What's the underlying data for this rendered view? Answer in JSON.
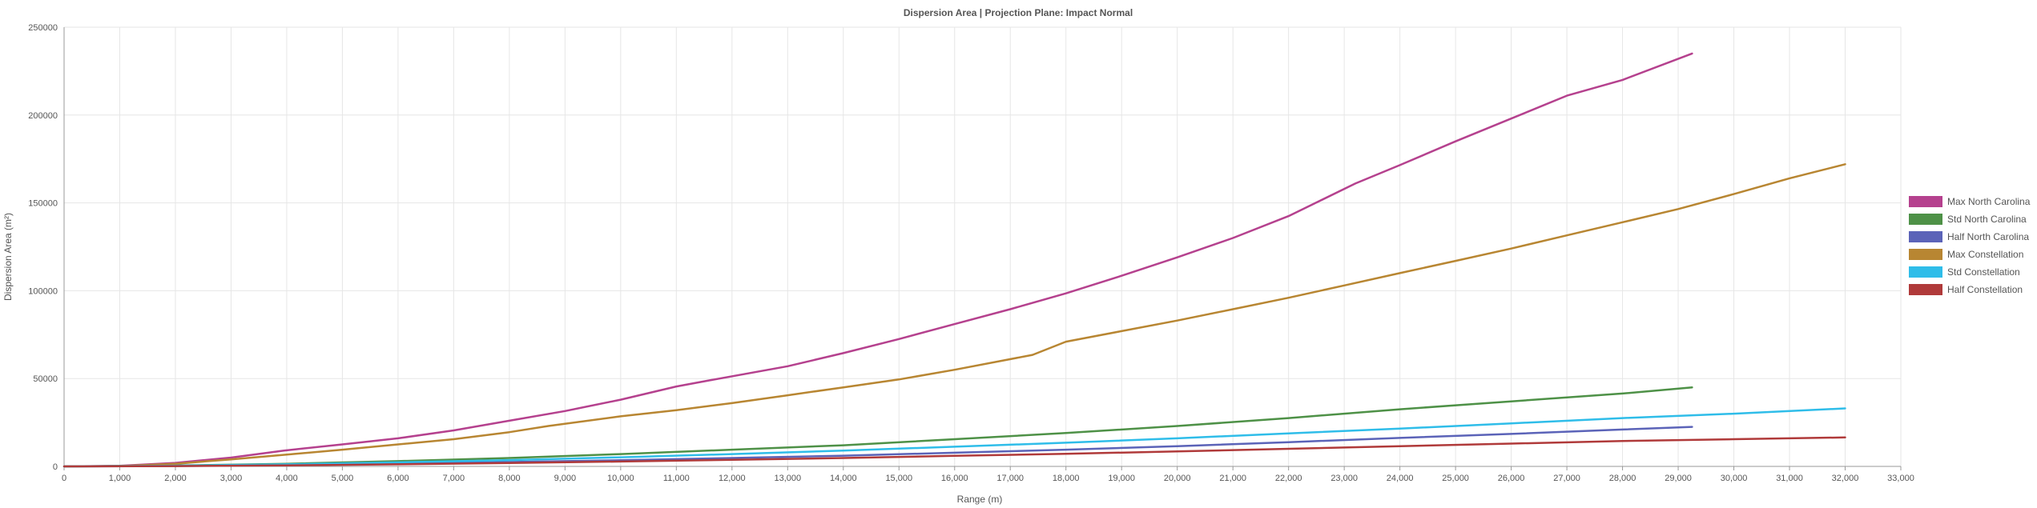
{
  "chart_data": {
    "type": "line",
    "title": "Dispersion Area | Projection Plane: Impact Normal",
    "xlabel": "Range (m)",
    "ylabel": "Dispersion Area (m²)",
    "xlim": [
      0,
      33000
    ],
    "ylim": [
      0,
      250000
    ],
    "x_ticks": [
      "0",
      "1,000",
      "2,000",
      "3,000",
      "4,000",
      "5,000",
      "6,000",
      "7,000",
      "8,000",
      "9,000",
      "10,000",
      "11,000",
      "12,000",
      "13,000",
      "14,000",
      "15,000",
      "16,000",
      "17,000",
      "18,000",
      "19,000",
      "20,000",
      "21,000",
      "22,000",
      "23,000",
      "24,000",
      "25,000",
      "26,000",
      "27,000",
      "28,000",
      "29,000",
      "30,000",
      "31,000",
      "32,000",
      "33,000"
    ],
    "y_ticks": [
      "0",
      "50000",
      "100000",
      "150000",
      "200000",
      "250000"
    ],
    "grid": true,
    "legend_position": "right",
    "series": [
      {
        "name": "Max North Carolina",
        "color": "#b5418e",
        "x": [
          0,
          1000,
          2000,
          3000,
          3950,
          5000,
          6000,
          7000,
          8000,
          9000,
          10000,
          11000,
          11600,
          13000,
          14000,
          15000,
          16000,
          17000,
          18000,
          19000,
          20000,
          21000,
          22000,
          23200,
          24000,
          25000,
          26000,
          27000,
          28000,
          29250
        ],
        "y": [
          0,
          300,
          2000,
          5000,
          9000,
          12500,
          16000,
          20500,
          26000,
          31500,
          38000,
          45500,
          49000,
          57000,
          64500,
          72500,
          81000,
          89500,
          98500,
          108500,
          119000,
          130000,
          142500,
          161000,
          171500,
          185000,
          198000,
          211000,
          220000,
          235000
        ]
      },
      {
        "name": "Std North Carolina",
        "color": "#4e9147",
        "x": [
          0,
          2000,
          4000,
          6000,
          8000,
          10000,
          12000,
          14000,
          16000,
          18000,
          20000,
          22000,
          24000,
          26000,
          28000,
          29250
        ],
        "y": [
          0,
          500,
          1500,
          3000,
          4800,
          7000,
          9500,
          12000,
          15500,
          19000,
          23000,
          27500,
          32500,
          37000,
          41500,
          45000
        ]
      },
      {
        "name": "Half North Carolina",
        "color": "#5b63b8",
        "x": [
          0,
          2000,
          4000,
          6000,
          8000,
          10000,
          12000,
          14000,
          16000,
          18000,
          20000,
          22000,
          24000,
          26000,
          28000,
          29250
        ],
        "y": [
          0,
          250,
          750,
          1500,
          2500,
          3500,
          4800,
          6100,
          7800,
          9500,
          11500,
          13800,
          16200,
          18500,
          21000,
          22500
        ]
      },
      {
        "name": "Max Constellation",
        "color": "#b88632",
        "x": [
          0,
          1000,
          2000,
          3000,
          4000,
          5000,
          6000,
          7000,
          8000,
          8700,
          10000,
          11000,
          12000,
          13000,
          14000,
          15000,
          16000,
          17400,
          18000,
          19000,
          20000,
          21000,
          22000,
          23000,
          24000,
          25000,
          26000,
          27000,
          28000,
          29000,
          30000,
          31000,
          32000
        ],
        "y": [
          0,
          200,
          1500,
          4000,
          6700,
          9500,
          12500,
          15500,
          19500,
          23000,
          28500,
          32000,
          36000,
          40500,
          45000,
          49500,
          55000,
          63500,
          71000,
          77000,
          83000,
          89500,
          96000,
          103000,
          110000,
          117000,
          124000,
          131500,
          139000,
          146500,
          155000,
          164000,
          172000
        ]
      },
      {
        "name": "Std Constellation",
        "color": "#2fbde9",
        "x": [
          0,
          2000,
          4000,
          6000,
          8000,
          10000,
          12000,
          14000,
          16000,
          18000,
          20000,
          22000,
          24000,
          26000,
          28000,
          30000,
          32000
        ],
        "y": [
          0,
          400,
          1200,
          2300,
          3600,
          5200,
          7000,
          9000,
          11200,
          13500,
          16000,
          18800,
          21500,
          24500,
          27500,
          30000,
          33000
        ]
      },
      {
        "name": "Half Constellation",
        "color": "#b03a3a",
        "x": [
          0,
          2000,
          4000,
          6000,
          8000,
          10000,
          12000,
          14000,
          16000,
          18000,
          20000,
          22000,
          24000,
          26000,
          28000,
          30000,
          32000
        ],
        "y": [
          0,
          200,
          600,
          1200,
          1900,
          2800,
          3800,
          4800,
          6000,
          7200,
          8500,
          10000,
          11500,
          13000,
          14500,
          15500,
          16500
        ]
      }
    ]
  }
}
